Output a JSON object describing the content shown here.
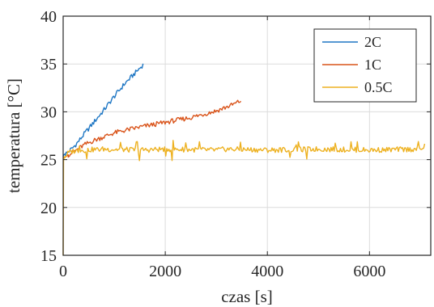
{
  "chart_data": {
    "type": "line",
    "xlabel": "czas [s]",
    "ylabel": "temperatura [°C]",
    "xlim": [
      0,
      7200
    ],
    "ylim": [
      15,
      40
    ],
    "xticks": [
      0,
      2000,
      4000,
      6000
    ],
    "yticks": [
      15,
      20,
      25,
      30,
      35,
      40
    ],
    "xtick_labels": [
      "0",
      "2000",
      "4000",
      "6000"
    ],
    "ytick_labels": [
      "15",
      "20",
      "25",
      "30",
      "35",
      "40"
    ],
    "grid": true,
    "legend_position": "top-right",
    "series": [
      {
        "name": "2C",
        "color": "#1f77c4",
        "x": [
          0,
          10,
          40,
          100,
          200,
          300,
          400,
          600,
          800,
          1000,
          1200,
          1400,
          1580
        ],
        "y": [
          25.3,
          25.5,
          25.6,
          25.8,
          26.3,
          26.9,
          27.6,
          28.9,
          30.2,
          31.6,
          32.9,
          34.0,
          35.0
        ]
      },
      {
        "name": "1C",
        "color": "#d95319",
        "x": [
          0,
          50,
          100,
          200,
          400,
          600,
          800,
          1000,
          1500,
          2000,
          2500,
          3000,
          3300,
          3500
        ],
        "y": [
          25.2,
          25.3,
          25.5,
          25.8,
          26.5,
          27.0,
          27.4,
          27.8,
          28.4,
          28.9,
          29.4,
          30.1,
          30.7,
          31.2
        ]
      },
      {
        "name": "0.5C",
        "color": "#edb120",
        "x": [
          0,
          8,
          30,
          100,
          200,
          400,
          800,
          1500,
          2000,
          3000,
          3200,
          4000,
          5000,
          6000,
          7000,
          7100
        ],
        "y": [
          15.0,
          25.0,
          25.3,
          25.7,
          25.9,
          26.0,
          26.1,
          26.0,
          26.1,
          26.0,
          26.1,
          26.0,
          26.1,
          26.0,
          26.1,
          26.5
        ]
      }
    ]
  }
}
